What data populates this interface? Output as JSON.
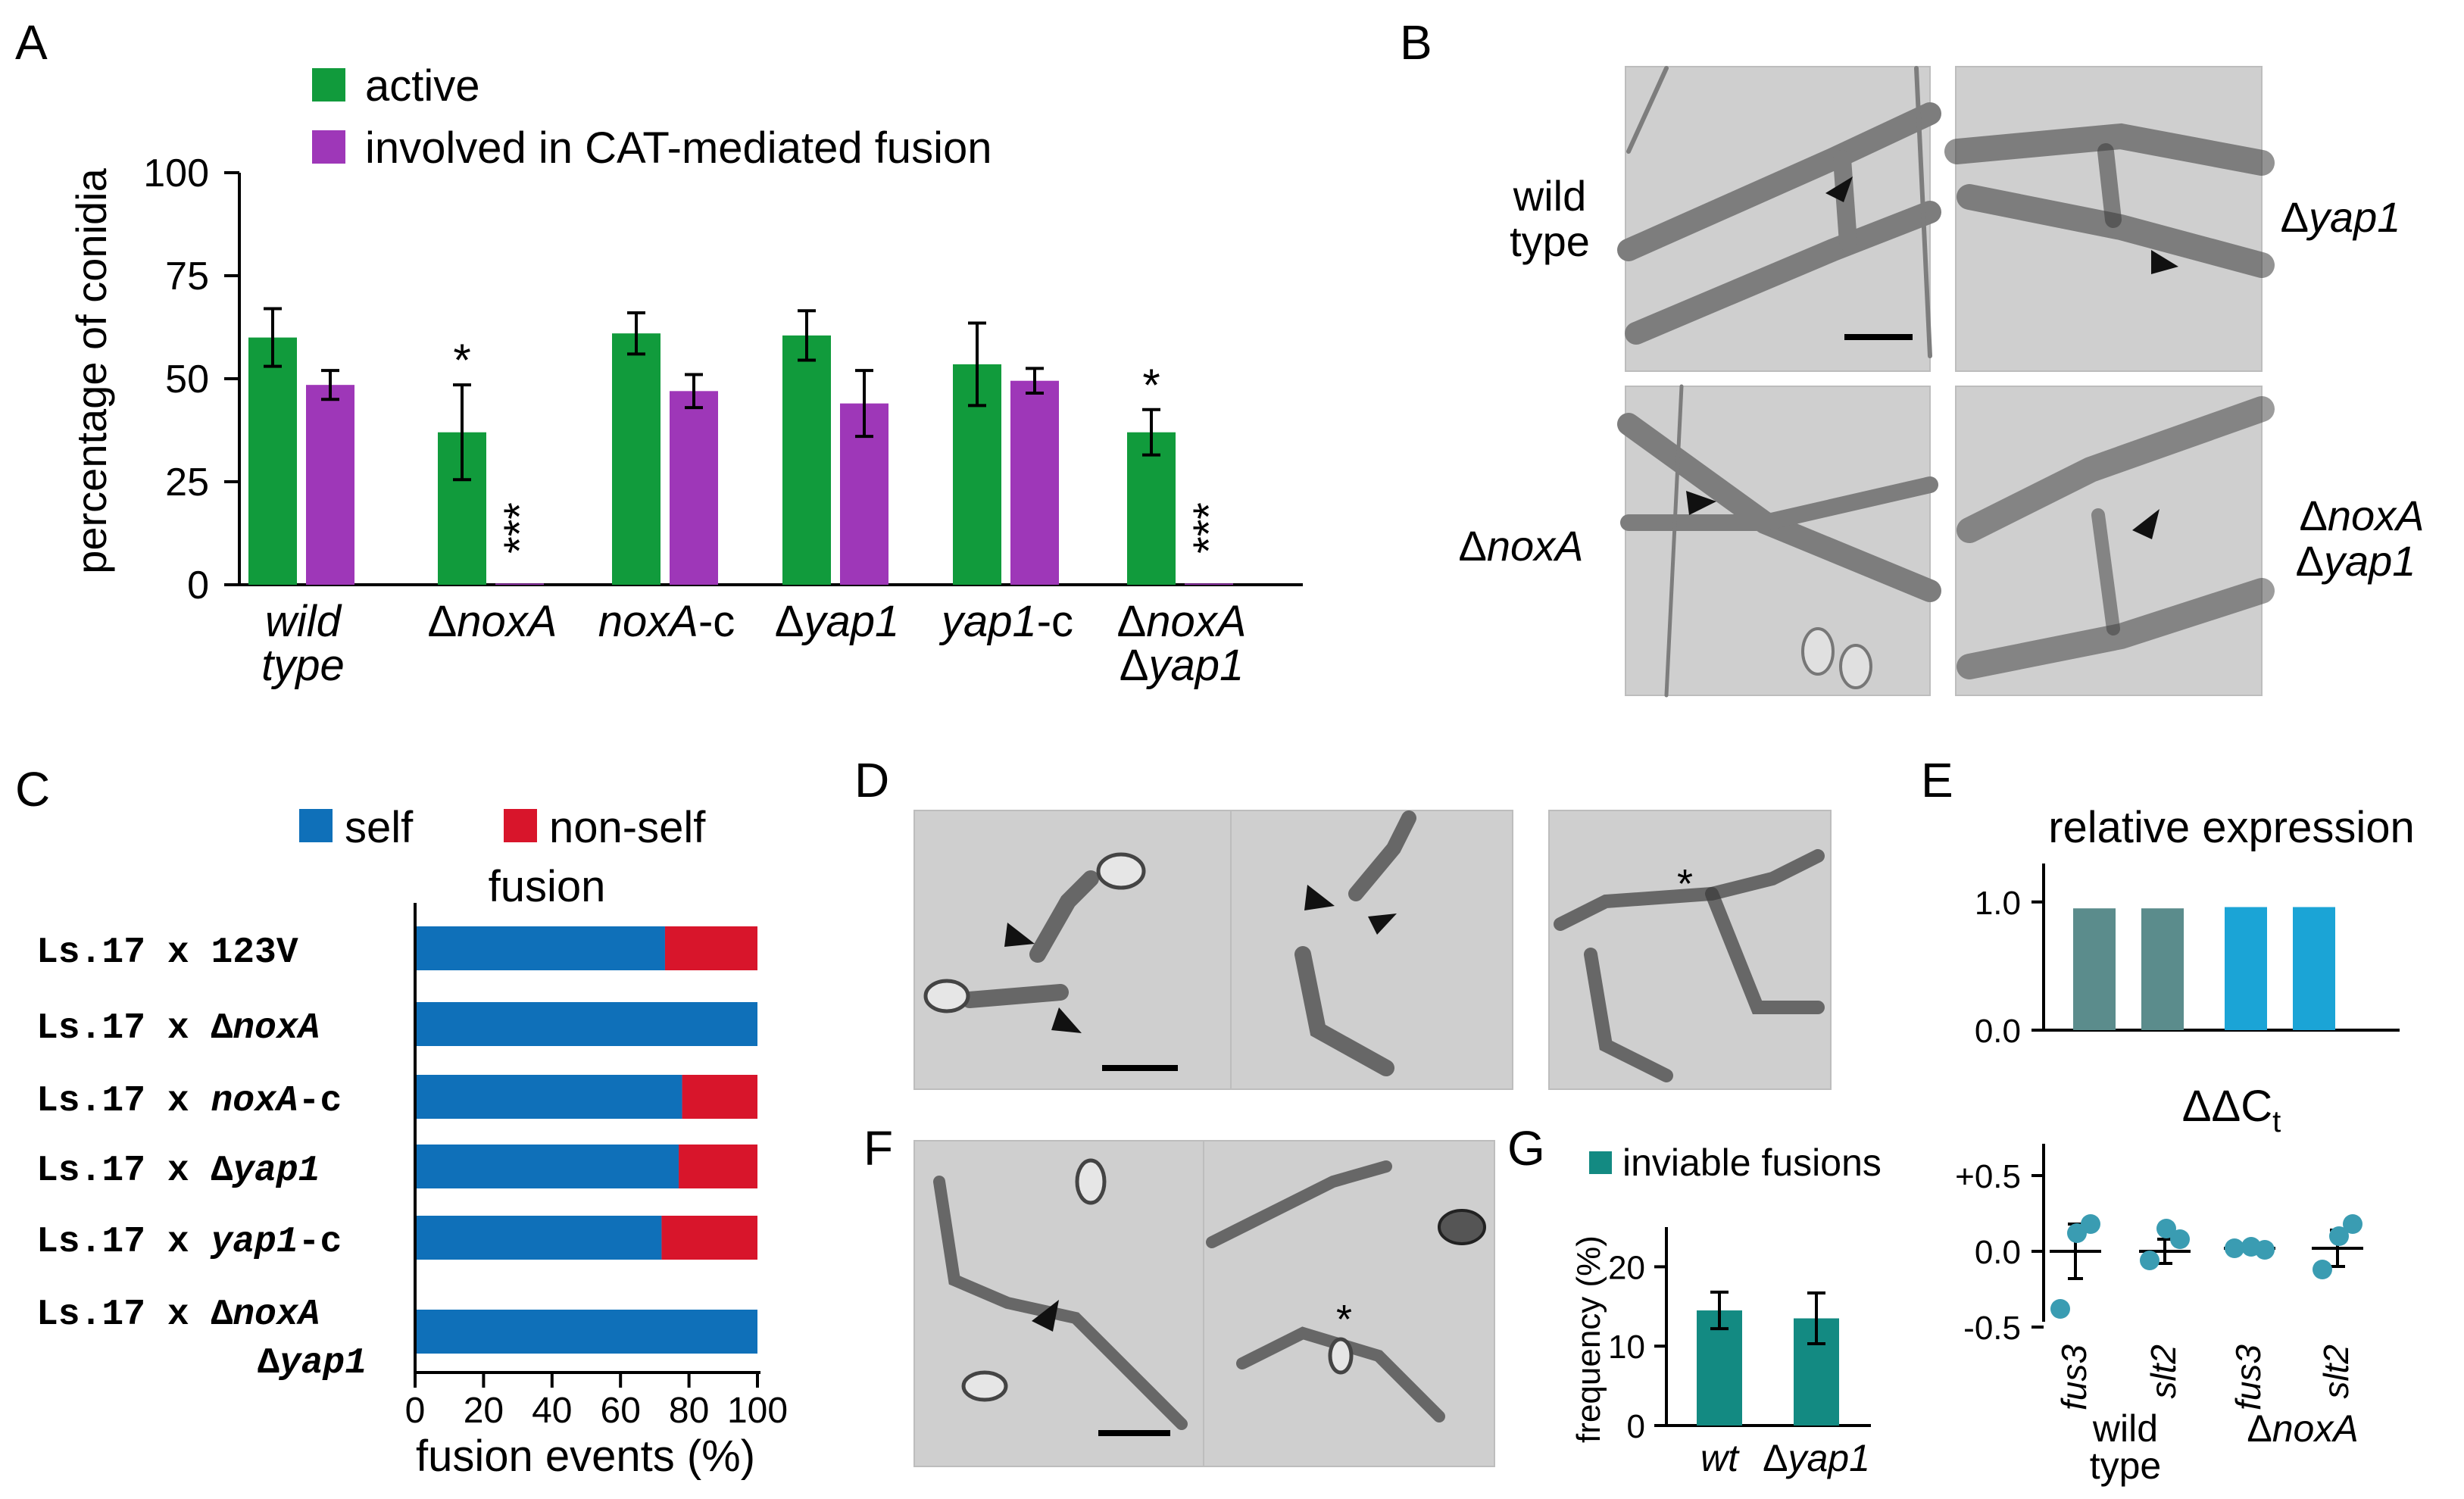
{
  "panel_labels": {
    "A": "A",
    "B": "B",
    "C": "C",
    "D": "D",
    "E": "E",
    "F": "F",
    "G": "G"
  },
  "colors": {
    "active": "#119b3c",
    "fusion": "#9e37b8",
    "self": "#0f70b9",
    "nonself": "#d8152b",
    "teal": "#138a82",
    "wt_bar": "#5b8c8c",
    "nox_bar": "#1ba4d6",
    "dot": "#3a9cb2"
  },
  "panel_b_labels": {
    "wt1": "wild",
    "wt2": "type",
    "yap": "Δyap1",
    "nox": "ΔnoxA",
    "dbl1": "ΔnoxA",
    "dbl2": "Δyap1"
  },
  "chart_data": [
    {
      "panel": "A",
      "type": "bar",
      "ylabel": "percentage of conidia",
      "ylim": [
        0,
        100
      ],
      "yticks": [
        "0",
        "25",
        "50",
        "75",
        "100"
      ],
      "categories": [
        [
          "wild",
          "type"
        ],
        [
          "ΔnoxA"
        ],
        [
          "noxA-c"
        ],
        [
          "Δyap1"
        ],
        [
          "yap1-c"
        ],
        [
          "ΔnoxA",
          "Δyap1"
        ]
      ],
      "series": [
        {
          "name": "active",
          "values": [
            60,
            37,
            61,
            60.5,
            53.5,
            37
          ],
          "err": [
            7,
            11.5,
            5,
            6,
            10,
            5.5
          ],
          "marks": [
            "",
            "*",
            "",
            "",
            "",
            "*"
          ]
        },
        {
          "name": "involved in CAT-mediated fusion",
          "values": [
            48.5,
            0.3,
            47,
            44,
            49.5,
            0.3
          ],
          "err": [
            3.5,
            0,
            4,
            8,
            3,
            0
          ],
          "marks": [
            "",
            "***",
            "",
            "",
            "",
            "***"
          ]
        }
      ]
    },
    {
      "panel": "C",
      "type": "bar",
      "legend": [
        "self",
        "non-self"
      ],
      "legend_sub": "fusion",
      "xlabel": "fusion events (%)",
      "xlim": [
        0,
        100
      ],
      "xticks": [
        "0",
        "20",
        "40",
        "60",
        "80",
        "100"
      ],
      "rows": [
        [
          "Ls.17 x 123V"
        ],
        [
          "Ls.17 x ΔnoxA"
        ],
        [
          "Ls.17 x noxA-c"
        ],
        [
          "Ls.17 x Δyap1"
        ],
        [
          "Ls.17 x yap1-c"
        ],
        [
          "Ls.17 x ΔnoxA",
          "Δyap1"
        ]
      ],
      "self": [
        73,
        100,
        78,
        77,
        72,
        100
      ]
    },
    {
      "panel": "E",
      "type": "bar",
      "title": "relative expression",
      "ylim": [
        0,
        1.3
      ],
      "yticks": [
        "0.0",
        "1.0"
      ],
      "values": [
        0.95,
        0.95,
        0.96,
        0.96
      ]
    },
    {
      "panel": "E",
      "type": "scatter",
      "title": "ΔΔCt",
      "ylim": [
        -0.6,
        0.8
      ],
      "yticks": [
        "+0.5",
        "0.0",
        "-0.5"
      ],
      "genes": [
        "fus3",
        "slt2",
        "fus3",
        "slt2"
      ],
      "groups": [
        [
          "wild",
          "type"
        ],
        [
          "ΔnoxA"
        ]
      ],
      "points": [
        [
          0.18,
          -0.38,
          0.12
        ],
        [
          0.08,
          -0.06,
          0.15
        ],
        [
          0.01,
          0.02,
          0.03
        ],
        [
          0.18,
          -0.12,
          0.1
        ]
      ],
      "mean": [
        0.0,
        0.0,
        0.02,
        0.02
      ],
      "err": [
        0.18,
        0.08,
        0.01,
        0.12
      ]
    },
    {
      "panel": "G",
      "type": "bar",
      "legend": [
        "inviable fusions"
      ],
      "ylabel": "frequency (%)",
      "ylim": [
        0,
        25
      ],
      "yticks": [
        "0",
        "10",
        "20"
      ],
      "categories": [
        "wt",
        "Δyap1"
      ],
      "values": [
        14.5,
        13.5
      ],
      "err": [
        2.3,
        3.2
      ]
    }
  ]
}
